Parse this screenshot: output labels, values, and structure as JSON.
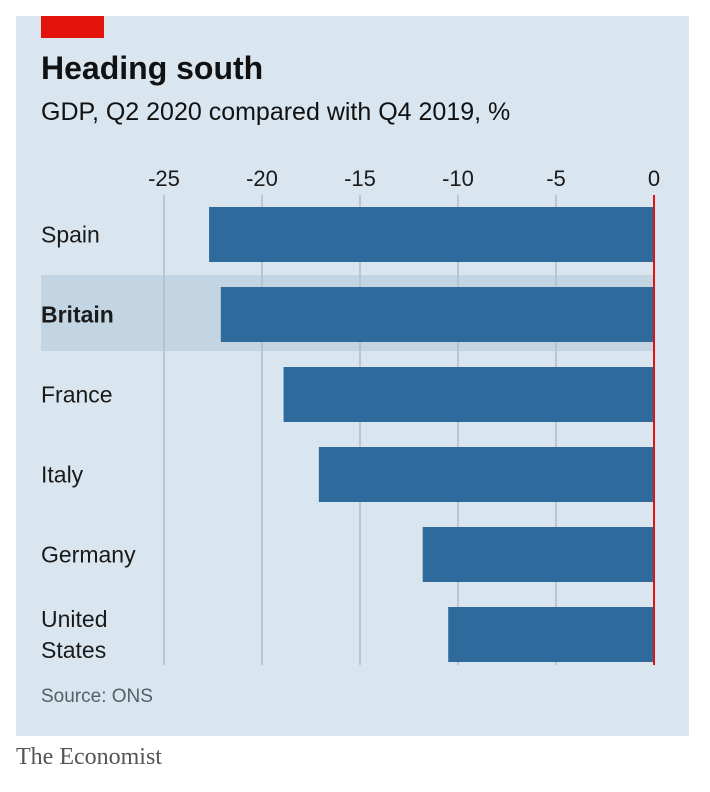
{
  "colors": {
    "panel_background": "#d9e6ef",
    "bar": "#2e6a9b",
    "highlight_band": "#c3d5e2",
    "gridline": "#b3bcc3",
    "zero_line": "#e3120b",
    "accent_tag": "#e3120b"
  },
  "header": {
    "title": "Heading south",
    "subtitle": "GDP, Q2 2020 compared with Q4 2019, %"
  },
  "footer": {
    "source": "Source: ONS",
    "publisher": "The Economist"
  },
  "chart_data": {
    "type": "bar",
    "orientation": "horizontal",
    "title": "Heading south",
    "subtitle": "GDP, Q2 2020 compared with Q4 2019, %",
    "categories": [
      {
        "name": "Spain",
        "lines": [
          "Spain"
        ]
      },
      {
        "name": "Britain",
        "lines": [
          "Britain"
        ],
        "highlight": true
      },
      {
        "name": "France",
        "lines": [
          "France"
        ]
      },
      {
        "name": "Italy",
        "lines": [
          "Italy"
        ]
      },
      {
        "name": "Germany",
        "lines": [
          "Germany"
        ]
      },
      {
        "name": "United States",
        "lines": [
          "United",
          "States"
        ]
      }
    ],
    "values": [
      -22.7,
      -22.1,
      -18.9,
      -17.1,
      -11.8,
      -10.5
    ],
    "xlim": [
      -25,
      0
    ],
    "ticks": [
      -25,
      -20,
      -15,
      -10,
      -5,
      0
    ],
    "tick_labels": [
      "-25",
      "-20",
      "-15",
      "-10",
      "-5",
      "0"
    ],
    "grid": true,
    "xlabel": "",
    "ylabel": ""
  }
}
